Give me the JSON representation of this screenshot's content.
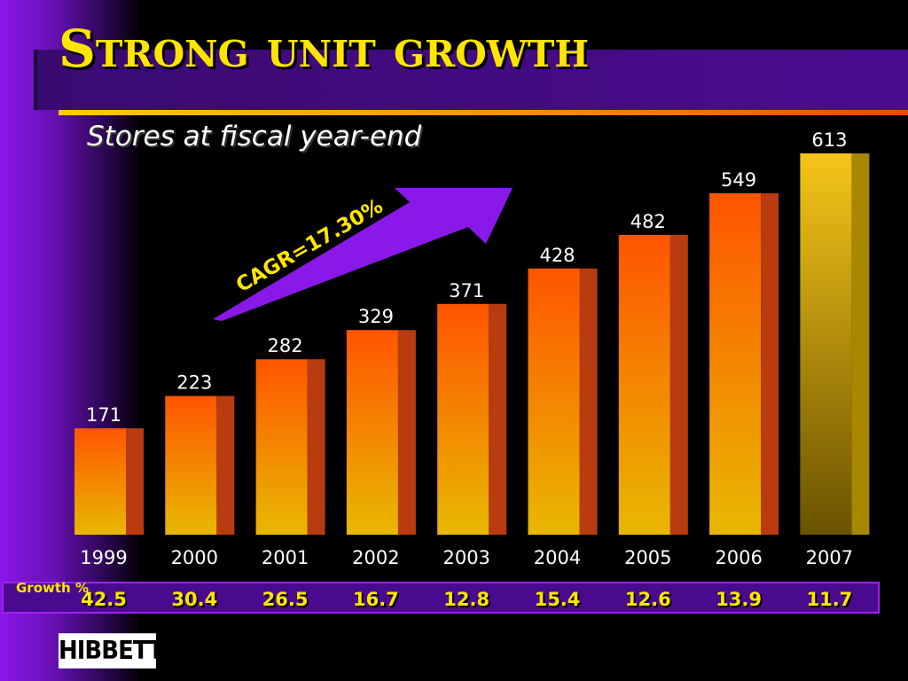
{
  "slide": {
    "title": "Strong unit growth",
    "subtitle": "Stores at fiscal year-end",
    "logo_text": "HIBBETT"
  },
  "colors": {
    "title": "#ffe600",
    "bar_top": "#ff5500",
    "bar_bottom": "#e8b800",
    "last_bar_top": "#f5c518",
    "last_bar_bottom": "#6a5200",
    "arrow": "#8a18e8",
    "growth_band": "#4a0a90"
  },
  "growth": {
    "label": "Growth %",
    "values": [
      "42.5",
      "30.4",
      "26.5",
      "16.7",
      "12.8",
      "15.4",
      "12.6",
      "13.9",
      "11.7"
    ]
  },
  "chart_data": {
    "type": "bar",
    "title": "Stores at fiscal year-end",
    "categories": [
      "1999",
      "2000",
      "2001",
      "2002",
      "2003",
      "2004",
      "2005",
      "2006",
      "2007"
    ],
    "values": [
      171,
      223,
      282,
      329,
      371,
      428,
      482,
      549,
      613
    ],
    "annotation": "CAGR=17.30%",
    "xlabel": "",
    "ylabel": "",
    "ylim": [
      0,
      613
    ],
    "grid": false,
    "legend": "none"
  }
}
